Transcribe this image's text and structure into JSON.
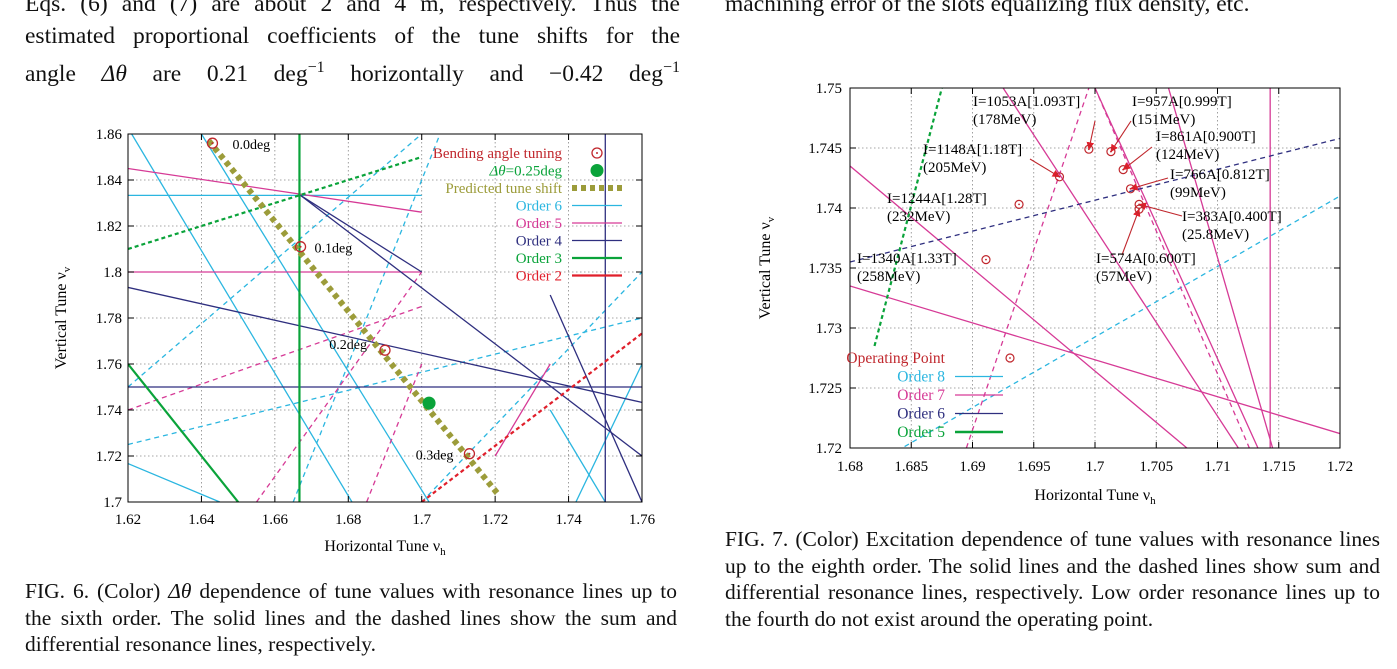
{
  "text_top_left": {
    "line1": "Eqs. (6) and (7) are about 2 and 4 m, respectively. Thus the",
    "line2": "estimated proportional coefficients of the tune shifts for the",
    "line3_prefix": "angle",
    "line3_delta": "Δθ",
    "line3_mid": "are 0.21 deg",
    "line3_exp1": "−1",
    "line3_mid2": "horizontally and −0.42 deg",
    "line3_exp2": "−1"
  },
  "text_top_right": {
    "line1": "machining error of the slots equalizing flux density, etc."
  },
  "fig6": {
    "caption_label": "FIG. 6. (Color)",
    "caption_delta": "Δθ",
    "caption_rest": "dependence of tune values with resonance lines up to the sixth order. The solid lines and the dashed lines show the sum and differential resonance lines, respectively.",
    "chart_data": {
      "type": "scatter",
      "xlabel": "Horizontal Tune ν",
      "xlabel_sub": "h",
      "ylabel": "Vertical Tune ν",
      "ylabel_sub": "v",
      "xlim": [
        1.62,
        1.76
      ],
      "ylim": [
        1.7,
        1.86
      ],
      "xticks": [
        "1.62",
        "1.64",
        "1.66",
        "1.68",
        "1.7",
        "1.72",
        "1.74",
        "1.76"
      ],
      "yticks": [
        "1.7",
        "1.72",
        "1.74",
        "1.76",
        "1.78",
        "1.8",
        "1.82",
        "1.84",
        "1.86"
      ],
      "grid": true,
      "legend_position": "top-right",
      "legend": [
        {
          "label": "Bending angle tuning",
          "color": "#c0272d",
          "kind": "circle"
        },
        {
          "label": "Δθ=0.25deg",
          "color": "#0aa33a",
          "kind": "dot"
        },
        {
          "label": "Predicted tune shift",
          "color": "#9c9c3a",
          "kind": "thick-dotted"
        },
        {
          "label": "Order 6",
          "color": "#2bb6e0",
          "kind": "line"
        },
        {
          "label": "Order 5",
          "color": "#d63a96",
          "kind": "line"
        },
        {
          "label": "Order 4",
          "color": "#2f2f7f",
          "kind": "line"
        },
        {
          "label": "Order 3",
          "color": "#0aa33a",
          "kind": "line"
        },
        {
          "label": "Order 2",
          "color": "#e01f2b",
          "kind": "line"
        }
      ],
      "points": [
        {
          "x": 1.643,
          "y": 1.856,
          "label": "0.0deg"
        },
        {
          "x": 1.667,
          "y": 1.811,
          "label": "0.1deg"
        },
        {
          "x": 1.69,
          "y": 1.766,
          "label": "0.2deg"
        },
        {
          "x": 1.713,
          "y": 1.721,
          "label": "0.3deg"
        }
      ],
      "highlight_point": {
        "x": 1.702,
        "y": 1.743
      },
      "predicted_line": {
        "x": [
          1.642,
          1.721
        ],
        "y": [
          1.857,
          1.703
        ]
      }
    }
  },
  "fig7": {
    "caption": "FIG. 7. (Color) Excitation dependence of tune values with resonance lines up to the eighth order. The solid lines and the dashed lines show sum and differential resonance lines, respectively. Low order resonance lines up to the fourth do not exist around the operating point.",
    "chart_data": {
      "type": "scatter",
      "xlabel": "Horizontal Tune ν",
      "xlabel_sub": "h",
      "ylabel": "Vertical Tune ν",
      "ylabel_sub": "v",
      "xlim": [
        1.68,
        1.72
      ],
      "ylim": [
        1.72,
        1.75
      ],
      "xticks": [
        "1.68",
        "1.685",
        "1.69",
        "1.695",
        "1.7",
        "1.705",
        "1.71",
        "1.715",
        "1.72"
      ],
      "yticks": [
        "1.72",
        "1.725",
        "1.73",
        "1.735",
        "1.74",
        "1.745",
        "1.75"
      ],
      "grid": true,
      "legend_position": "bottom-left",
      "legend": [
        {
          "label": "Operating Point",
          "color": "#c0272d",
          "kind": "circle"
        },
        {
          "label": "Order 8",
          "color": "#2bb6e0",
          "kind": "line"
        },
        {
          "label": "Order 7",
          "color": "#d63a96",
          "kind": "line"
        },
        {
          "label": "Order 6",
          "color": "#2f2f7f",
          "kind": "line"
        },
        {
          "label": "Order 5",
          "color": "#0aa33a",
          "kind": "line"
        }
      ],
      "points": [
        {
          "x": 1.6995,
          "y": 1.7449,
          "label": "I=1053A[1.093T]",
          "label2": "(178MeV)"
        },
        {
          "x": 1.7013,
          "y": 1.7447,
          "label": "I=957A[0.999T]",
          "label2": "(151MeV)"
        },
        {
          "x": 1.6971,
          "y": 1.7426,
          "label": "I=1148A[1.18T]",
          "label2": "(205MeV)"
        },
        {
          "x": 1.7023,
          "y": 1.7432,
          "label": "I=861A[0.900T]",
          "label2": "(124MeV)"
        },
        {
          "x": 1.7029,
          "y": 1.7416,
          "label": "I=766A[0.812T]",
          "label2": "(99MeV)"
        },
        {
          "x": 1.6938,
          "y": 1.7403,
          "label": "I=1244A[1.28T]",
          "label2": "(232MeV)"
        },
        {
          "x": 1.7036,
          "y": 1.7403,
          "label": "I=383A[0.400T]",
          "label2": "(25.8MeV)"
        },
        {
          "x": 1.7036,
          "y": 1.7399,
          "label": "I=574A[0.600T]",
          "label2": "(57MeV)"
        },
        {
          "x": 1.6911,
          "y": 1.7357,
          "label": "I=1340A[1.33T]",
          "label2": "(258MeV)"
        }
      ]
    }
  }
}
